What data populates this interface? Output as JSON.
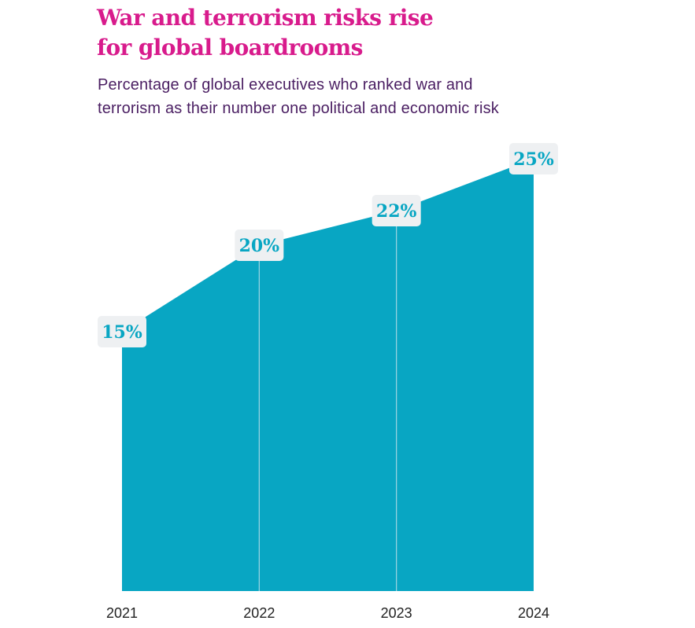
{
  "title_lines": [
    "War and terrorism risks rise",
    "for global boardrooms"
  ],
  "subtitle_lines": [
    "Percentage of global executives who ranked war and",
    "terrorism as their number one political and economic risk"
  ],
  "colors": {
    "title": "#d81b8c",
    "subtitle": "#4a1e62",
    "area": "#08a6c3",
    "label_bg": "#eef0f2",
    "label_text": "#08a6c3",
    "tick_text": "#222222",
    "gridline": "#9fd6e3"
  },
  "chart_data": {
    "type": "area",
    "title": "War and terrorism risks rise for global boardrooms",
    "subtitle": "Percentage of global executives who ranked war and terrorism as their number one political and economic risk",
    "categories": [
      "2021",
      "2022",
      "2023",
      "2024"
    ],
    "values": [
      15,
      20,
      22,
      25
    ],
    "data_labels": [
      "15%",
      "20%",
      "22%",
      "25%"
    ],
    "ylim": [
      0,
      26
    ],
    "unit": "%",
    "grid": false,
    "legend": "none"
  }
}
